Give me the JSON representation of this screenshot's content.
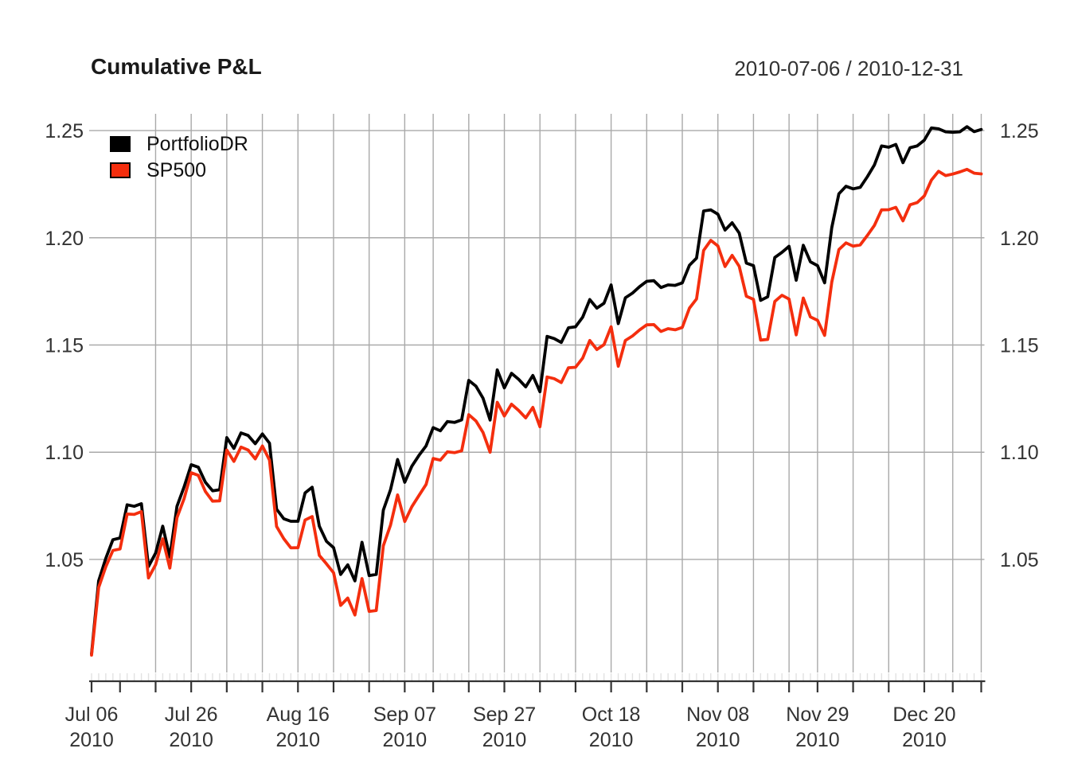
{
  "header": {
    "title": "Cumulative P&L",
    "date_range": "2010-07-06 / 2010-12-31"
  },
  "colors": {
    "portfolio_line": "#000000",
    "sp500_line": "#f42e0e",
    "gridline": "#a9a9a9",
    "axis": "#333333",
    "minor_tick": "#e2e2e2",
    "tick_text": "#333333",
    "background": "#ffffff"
  },
  "chart_data": {
    "type": "line",
    "title": "Cumulative P&L",
    "subtitle": "2010-07-06 / 2010-12-31",
    "xlabel": "",
    "ylabel": "",
    "grid": true,
    "legend_position": "top-left",
    "ylim": [
      0.9973,
      1.2578
    ],
    "y_ticks": [
      {
        "label": "1.05",
        "value": 1.05
      },
      {
        "label": "1.10",
        "value": 1.1
      },
      {
        "label": "1.15",
        "value": 1.15
      },
      {
        "label": "1.20",
        "value": 1.2
      },
      {
        "label": "1.25",
        "value": 1.25
      }
    ],
    "x_axis": {
      "tick_labels": [
        {
          "text": "Jul 06",
          "year": "2010",
          "day": 1
        },
        {
          "text": "Jul 26",
          "year": "2010",
          "day": 15
        },
        {
          "text": "Aug 16",
          "year": "2010",
          "day": 30
        },
        {
          "text": "Sep 07",
          "year": "2010",
          "day": 45
        },
        {
          "text": "Sep 27",
          "year": "2010",
          "day": 59
        },
        {
          "text": "Oct 18",
          "year": "2010",
          "day": 74
        },
        {
          "text": "Nov 08",
          "year": "2010",
          "day": 89
        },
        {
          "text": "Nov 29",
          "year": "2010",
          "day": 103
        },
        {
          "text": "Dec 20",
          "year": "2010",
          "day": 118
        }
      ],
      "major_tick_days": [
        1,
        5,
        10,
        15,
        20,
        25,
        30,
        35,
        40,
        45,
        49,
        54,
        59,
        64,
        69,
        74,
        79,
        84,
        89,
        94,
        99,
        103,
        108,
        113,
        118,
        122,
        126
      ],
      "grid_days": [
        10,
        15,
        20,
        25,
        30,
        35,
        40,
        45,
        49,
        54,
        59,
        64,
        69,
        74,
        79,
        84,
        89,
        94,
        99,
        103,
        108,
        113,
        118,
        122,
        126
      ]
    },
    "dates": [
      "2010-07-06",
      "2010-07-07",
      "2010-07-08",
      "2010-07-09",
      "2010-07-12",
      "2010-07-13",
      "2010-07-14",
      "2010-07-15",
      "2010-07-16",
      "2010-07-19",
      "2010-07-20",
      "2010-07-21",
      "2010-07-22",
      "2010-07-23",
      "2010-07-26",
      "2010-07-27",
      "2010-07-28",
      "2010-07-29",
      "2010-07-30",
      "2010-08-02",
      "2010-08-03",
      "2010-08-04",
      "2010-08-05",
      "2010-08-06",
      "2010-08-09",
      "2010-08-10",
      "2010-08-11",
      "2010-08-12",
      "2010-08-13",
      "2010-08-16",
      "2010-08-17",
      "2010-08-18",
      "2010-08-19",
      "2010-08-20",
      "2010-08-23",
      "2010-08-24",
      "2010-08-25",
      "2010-08-26",
      "2010-08-27",
      "2010-08-30",
      "2010-08-31",
      "2010-09-01",
      "2010-09-02",
      "2010-09-03",
      "2010-09-07",
      "2010-09-08",
      "2010-09-09",
      "2010-09-10",
      "2010-09-13",
      "2010-09-14",
      "2010-09-15",
      "2010-09-16",
      "2010-09-17",
      "2010-09-20",
      "2010-09-21",
      "2010-09-22",
      "2010-09-23",
      "2010-09-24",
      "2010-09-27",
      "2010-09-28",
      "2010-09-29",
      "2010-09-30",
      "2010-10-01",
      "2010-10-04",
      "2010-10-05",
      "2010-10-06",
      "2010-10-07",
      "2010-10-08",
      "2010-10-11",
      "2010-10-12",
      "2010-10-13",
      "2010-10-14",
      "2010-10-15",
      "2010-10-18",
      "2010-10-19",
      "2010-10-20",
      "2010-10-21",
      "2010-10-22",
      "2010-10-25",
      "2010-10-26",
      "2010-10-27",
      "2010-10-28",
      "2010-10-29",
      "2010-11-01",
      "2010-11-02",
      "2010-11-03",
      "2010-11-04",
      "2010-11-05",
      "2010-11-08",
      "2010-11-09",
      "2010-11-10",
      "2010-11-11",
      "2010-11-12",
      "2010-11-15",
      "2010-11-16",
      "2010-11-17",
      "2010-11-18",
      "2010-11-19",
      "2010-11-22",
      "2010-11-23",
      "2010-11-24",
      "2010-11-26",
      "2010-11-29",
      "2010-11-30",
      "2010-12-01",
      "2010-12-02",
      "2010-12-03",
      "2010-12-06",
      "2010-12-07",
      "2010-12-08",
      "2010-12-09",
      "2010-12-10",
      "2010-12-13",
      "2010-12-14",
      "2010-12-15",
      "2010-12-16",
      "2010-12-17",
      "2010-12-20",
      "2010-12-21",
      "2010-12-22",
      "2010-12-23",
      "2010-12-27",
      "2010-12-28",
      "2010-12-29",
      "2010-12-30",
      "2010-12-31"
    ],
    "series": [
      {
        "name": "PortfolioDR",
        "color": "#000000",
        "values": [
          1.006,
          1.04,
          1.0505,
          1.0592,
          1.06,
          1.0755,
          1.0748,
          1.076,
          1.0467,
          1.053,
          1.0655,
          1.0511,
          1.0748,
          1.0838,
          1.0942,
          1.093,
          1.086,
          1.082,
          1.0825,
          1.1068,
          1.1018,
          1.109,
          1.1078,
          1.104,
          1.1085,
          1.1042,
          1.0735,
          1.069,
          1.0678,
          1.0678,
          1.081,
          1.0837,
          1.0655,
          1.0585,
          1.0555,
          1.043,
          1.0475,
          1.04,
          1.058,
          1.0425,
          1.043,
          1.073,
          1.0825,
          1.0966,
          1.086,
          1.0935,
          1.0985,
          1.103,
          1.1115,
          1.11,
          1.1143,
          1.1139,
          1.1151,
          1.1335,
          1.1308,
          1.1252,
          1.115,
          1.1384,
          1.13,
          1.1368,
          1.134,
          1.1305,
          1.1358,
          1.1282,
          1.154,
          1.153,
          1.1512,
          1.158,
          1.1585,
          1.163,
          1.1712,
          1.1672,
          1.1695,
          1.178,
          1.16,
          1.172,
          1.1742,
          1.1772,
          1.1797,
          1.18,
          1.1768,
          1.178,
          1.1778,
          1.179,
          1.1872,
          1.1905,
          1.2125,
          1.213,
          1.211,
          1.2036,
          1.207,
          1.2022,
          1.1882,
          1.187,
          1.1708,
          1.1725,
          1.1908,
          1.1932,
          1.196,
          1.1802,
          1.1965,
          1.1888,
          1.187,
          1.179,
          1.2048,
          1.2205,
          1.224,
          1.2228,
          1.2235,
          1.2285,
          1.234,
          1.2428,
          1.2422,
          1.2435,
          1.235,
          1.242,
          1.2428,
          1.2455,
          1.2512,
          1.2508,
          1.2494,
          1.2492,
          1.2494,
          1.2518,
          1.2495,
          1.2505
        ]
      },
      {
        "name": "SP500",
        "color": "#f42e0e",
        "values": [
          1.0054,
          1.0369,
          1.0466,
          1.0542,
          1.0549,
          1.0712,
          1.071,
          1.0723,
          1.0414,
          1.0476,
          1.0596,
          1.046,
          1.0695,
          1.0783,
          1.0904,
          1.0892,
          1.0817,
          1.0772,
          1.0773,
          1.101,
          1.0957,
          1.1024,
          1.101,
          1.0969,
          1.1029,
          1.0963,
          1.0654,
          1.0597,
          1.0554,
          1.0555,
          1.0684,
          1.07,
          1.0519,
          1.048,
          1.0438,
          1.0286,
          1.032,
          1.0241,
          1.0411,
          1.0258,
          1.0262,
          1.0564,
          1.066,
          1.0801,
          1.0677,
          1.0746,
          1.0798,
          1.085,
          1.0971,
          1.0963,
          1.1002,
          1.0998,
          1.1007,
          1.1175,
          1.1146,
          1.1092,
          1.1,
          1.1233,
          1.1169,
          1.1224,
          1.1195,
          1.116,
          1.1209,
          1.1119,
          1.1351,
          1.1343,
          1.1325,
          1.1394,
          1.1396,
          1.1439,
          1.1521,
          1.1479,
          1.1502,
          1.1585,
          1.1401,
          1.1521,
          1.1542,
          1.157,
          1.1594,
          1.1595,
          1.1563,
          1.1576,
          1.1571,
          1.1582,
          1.1672,
          1.1715,
          1.1941,
          1.1988,
          1.1962,
          1.1866,
          1.1918,
          1.1867,
          1.1727,
          1.1713,
          1.1523,
          1.1526,
          1.1703,
          1.1732,
          1.1714,
          1.1547,
          1.1719,
          1.1631,
          1.1615,
          1.1545,
          1.1794,
          1.1945,
          1.1976,
          1.1961,
          1.1967,
          1.2011,
          1.2058,
          1.213,
          1.2131,
          1.2142,
          1.2079,
          1.2154,
          1.2164,
          1.2195,
          1.2269,
          1.231,
          1.229,
          1.2297,
          1.2307,
          1.2319,
          1.2301,
          1.2298
        ]
      }
    ]
  }
}
